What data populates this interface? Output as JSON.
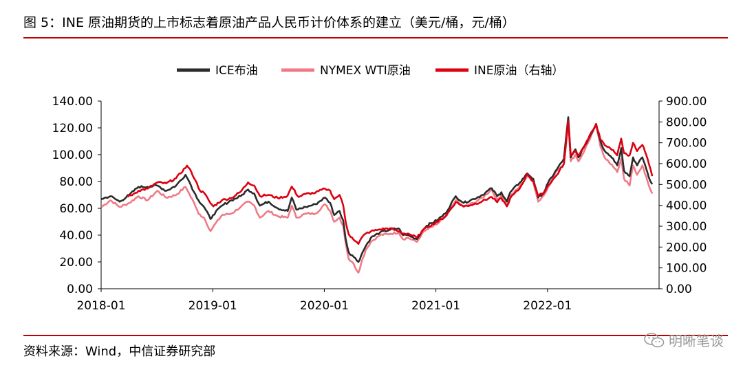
{
  "figure_title": "图 5：INE 原油期货的上市标志着原油产品人民币计价体系的建立（美元/桶，元/桶）",
  "source": "资料来源：Wind，中信证券研究部",
  "watermark": "明晰笔谈",
  "colors": {
    "ice": "#2b2b2b",
    "wti": "#f07a85",
    "ine": "#dd0010",
    "rule": "#c00000"
  },
  "chart_data": {
    "type": "line",
    "legend_position": "top",
    "x_ticks": [
      "2018-01",
      "2019-01",
      "2020-01",
      "2021-01",
      "2022-01"
    ],
    "x_range": [
      "2018-01",
      "2022-12"
    ],
    "y_left": {
      "range": [
        0,
        140
      ],
      "ticks": [
        "0.00",
        "20.00",
        "40.00",
        "60.00",
        "80.00",
        "100.00",
        "120.00",
        "140.00"
      ]
    },
    "y_right": {
      "range": [
        0,
        900
      ],
      "ticks": [
        "0.00",
        "100.00",
        "200.00",
        "300.00",
        "400.00",
        "500.00",
        "600.00",
        "700.00",
        "800.00",
        "900.00"
      ]
    },
    "series": [
      {
        "name": "ICE布油",
        "axis": "left",
        "color": "#2b2b2b",
        "points": [
          [
            "2018-01-02",
            67
          ],
          [
            "2018-02-01",
            69
          ],
          [
            "2018-03-01",
            65
          ],
          [
            "2018-04-02",
            70
          ],
          [
            "2018-05-01",
            76
          ],
          [
            "2018-06-01",
            76
          ],
          [
            "2018-07-02",
            77
          ],
          [
            "2018-08-01",
            73
          ],
          [
            "2018-09-03",
            77
          ],
          [
            "2018-10-03",
            85
          ],
          [
            "2018-10-15",
            80
          ],
          [
            "2018-11-01",
            72
          ],
          [
            "2018-11-15",
            66
          ],
          [
            "2018-12-03",
            61
          ],
          [
            "2018-12-24",
            52
          ],
          [
            "2019-01-02",
            55
          ],
          [
            "2019-02-01",
            62
          ],
          [
            "2019-03-01",
            66
          ],
          [
            "2019-04-01",
            69
          ],
          [
            "2019-04-25",
            74
          ],
          [
            "2019-05-15",
            71
          ],
          [
            "2019-06-03",
            62
          ],
          [
            "2019-07-01",
            65
          ],
          [
            "2019-08-01",
            60
          ],
          [
            "2019-09-03",
            58
          ],
          [
            "2019-09-16",
            68
          ],
          [
            "2019-10-01",
            59
          ],
          [
            "2019-11-01",
            61
          ],
          [
            "2019-12-02",
            63
          ],
          [
            "2020-01-03",
            68
          ],
          [
            "2020-01-20",
            64
          ],
          [
            "2020-02-03",
            55
          ],
          [
            "2020-02-20",
            58
          ],
          [
            "2020-03-02",
            51
          ],
          [
            "2020-03-10",
            37
          ],
          [
            "2020-03-20",
            27
          ],
          [
            "2020-04-01",
            25
          ],
          [
            "2020-04-21",
            20
          ],
          [
            "2020-05-04",
            27
          ],
          [
            "2020-05-15",
            32
          ],
          [
            "2020-06-01",
            38
          ],
          [
            "2020-07-01",
            42
          ],
          [
            "2020-08-03",
            44
          ],
          [
            "2020-09-01",
            45
          ],
          [
            "2020-09-15",
            40
          ],
          [
            "2020-10-01",
            40
          ],
          [
            "2020-10-30",
            37
          ],
          [
            "2020-11-16",
            43
          ],
          [
            "2020-12-01",
            47
          ],
          [
            "2021-01-04",
            51
          ],
          [
            "2021-02-01",
            56
          ],
          [
            "2021-03-05",
            69
          ],
          [
            "2021-04-01",
            64
          ],
          [
            "2021-05-03",
            67
          ],
          [
            "2021-06-01",
            70
          ],
          [
            "2021-07-01",
            75
          ],
          [
            "2021-07-19",
            69
          ],
          [
            "2021-08-02",
            72
          ],
          [
            "2021-08-20",
            65
          ],
          [
            "2021-09-01",
            72
          ],
          [
            "2021-10-01",
            79
          ],
          [
            "2021-10-26",
            86
          ],
          [
            "2021-11-15",
            82
          ],
          [
            "2021-12-01",
            68
          ],
          [
            "2021-12-20",
            72
          ],
          [
            "2022-01-03",
            79
          ],
          [
            "2022-02-01",
            89
          ],
          [
            "2022-02-24",
            97
          ],
          [
            "2022-03-08",
            128
          ],
          [
            "2022-03-16",
            98
          ],
          [
            "2022-04-01",
            104
          ],
          [
            "2022-04-11",
            98
          ],
          [
            "2022-05-02",
            107
          ],
          [
            "2022-06-08",
            123
          ],
          [
            "2022-06-22",
            110
          ],
          [
            "2022-07-05",
            103
          ],
          [
            "2022-07-15",
            101
          ],
          [
            "2022-08-03",
            97
          ],
          [
            "2022-08-16",
            92
          ],
          [
            "2022-08-29",
            105
          ],
          [
            "2022-09-08",
            88
          ],
          [
            "2022-09-26",
            84
          ],
          [
            "2022-10-07",
            98
          ],
          [
            "2022-10-20",
            92
          ],
          [
            "2022-11-07",
            98
          ],
          [
            "2022-11-15",
            93
          ],
          [
            "2022-11-28",
            83
          ],
          [
            "2022-12-09",
            78
          ]
        ]
      },
      {
        "name": "NYMEX WTI原油",
        "axis": "left",
        "color": "#f07a85",
        "points": [
          [
            "2018-01-02",
            61
          ],
          [
            "2018-02-01",
            66
          ],
          [
            "2018-03-01",
            61
          ],
          [
            "2018-04-02",
            64
          ],
          [
            "2018-05-01",
            69
          ],
          [
            "2018-06-01",
            66
          ],
          [
            "2018-07-02",
            73
          ],
          [
            "2018-08-01",
            68
          ],
          [
            "2018-09-03",
            70
          ],
          [
            "2018-10-03",
            76
          ],
          [
            "2018-10-15",
            71
          ],
          [
            "2018-11-01",
            64
          ],
          [
            "2018-11-15",
            56
          ],
          [
            "2018-12-03",
            53
          ],
          [
            "2018-12-24",
            43
          ],
          [
            "2019-01-02",
            46
          ],
          [
            "2019-02-01",
            55
          ],
          [
            "2019-03-01",
            56
          ],
          [
            "2019-04-01",
            61
          ],
          [
            "2019-04-25",
            65
          ],
          [
            "2019-05-15",
            62
          ],
          [
            "2019-06-03",
            53
          ],
          [
            "2019-07-01",
            58
          ],
          [
            "2019-08-01",
            54
          ],
          [
            "2019-09-03",
            53
          ],
          [
            "2019-09-16",
            62
          ],
          [
            "2019-10-01",
            53
          ],
          [
            "2019-11-01",
            56
          ],
          [
            "2019-12-02",
            56
          ],
          [
            "2020-01-03",
            63
          ],
          [
            "2020-01-20",
            58
          ],
          [
            "2020-02-03",
            50
          ],
          [
            "2020-02-20",
            53
          ],
          [
            "2020-03-02",
            47
          ],
          [
            "2020-03-10",
            34
          ],
          [
            "2020-03-20",
            22
          ],
          [
            "2020-04-01",
            20
          ],
          [
            "2020-04-21",
            12
          ],
          [
            "2020-05-04",
            22
          ],
          [
            "2020-05-15",
            29
          ],
          [
            "2020-06-01",
            35
          ],
          [
            "2020-07-01",
            40
          ],
          [
            "2020-08-03",
            41
          ],
          [
            "2020-09-01",
            42
          ],
          [
            "2020-09-15",
            37
          ],
          [
            "2020-10-01",
            38
          ],
          [
            "2020-10-30",
            35
          ],
          [
            "2020-11-16",
            41
          ],
          [
            "2020-12-01",
            44
          ],
          [
            "2021-01-04",
            48
          ],
          [
            "2021-02-01",
            54
          ],
          [
            "2021-03-05",
            66
          ],
          [
            "2021-04-01",
            61
          ],
          [
            "2021-05-03",
            64
          ],
          [
            "2021-06-01",
            68
          ],
          [
            "2021-07-01",
            74
          ],
          [
            "2021-07-19",
            66
          ],
          [
            "2021-08-02",
            70
          ],
          [
            "2021-08-20",
            62
          ],
          [
            "2021-09-01",
            69
          ],
          [
            "2021-10-01",
            76
          ],
          [
            "2021-10-26",
            84
          ],
          [
            "2021-11-15",
            80
          ],
          [
            "2021-12-01",
            65
          ],
          [
            "2021-12-20",
            70
          ],
          [
            "2022-01-03",
            76
          ],
          [
            "2022-02-01",
            88
          ],
          [
            "2022-02-24",
            93
          ],
          [
            "2022-03-08",
            124
          ],
          [
            "2022-03-16",
            95
          ],
          [
            "2022-04-01",
            100
          ],
          [
            "2022-04-11",
            95
          ],
          [
            "2022-05-02",
            104
          ],
          [
            "2022-06-08",
            122
          ],
          [
            "2022-06-22",
            106
          ],
          [
            "2022-07-05",
            98
          ],
          [
            "2022-07-15",
            96
          ],
          [
            "2022-08-03",
            91
          ],
          [
            "2022-08-16",
            87
          ],
          [
            "2022-08-29",
            97
          ],
          [
            "2022-09-08",
            82
          ],
          [
            "2022-09-26",
            77
          ],
          [
            "2022-10-07",
            92
          ],
          [
            "2022-10-20",
            85
          ],
          [
            "2022-11-07",
            92
          ],
          [
            "2022-11-15",
            86
          ],
          [
            "2022-11-28",
            77
          ],
          [
            "2022-12-09",
            71
          ]
        ]
      },
      {
        "name": "INE原油（右轴）",
        "axis": "right",
        "color": "#dd0010",
        "points": [
          [
            "2018-03-26",
            440
          ],
          [
            "2018-04-16",
            455
          ],
          [
            "2018-05-02",
            470
          ],
          [
            "2018-06-01",
            480
          ],
          [
            "2018-07-02",
            510
          ],
          [
            "2018-08-01",
            505
          ],
          [
            "2018-09-03",
            530
          ],
          [
            "2018-10-08",
            590
          ],
          [
            "2018-10-22",
            560
          ],
          [
            "2018-11-05",
            520
          ],
          [
            "2018-11-20",
            470
          ],
          [
            "2018-12-03",
            460
          ],
          [
            "2018-12-24",
            410
          ],
          [
            "2019-01-03",
            395
          ],
          [
            "2019-02-01",
            425
          ],
          [
            "2019-03-01",
            435
          ],
          [
            "2019-04-01",
            465
          ],
          [
            "2019-04-25",
            510
          ],
          [
            "2019-05-15",
            495
          ],
          [
            "2019-06-03",
            445
          ],
          [
            "2019-07-01",
            450
          ],
          [
            "2019-08-01",
            435
          ],
          [
            "2019-09-02",
            445
          ],
          [
            "2019-09-16",
            490
          ],
          [
            "2019-10-08",
            440
          ],
          [
            "2019-11-01",
            455
          ],
          [
            "2019-12-02",
            460
          ],
          [
            "2020-01-03",
            480
          ],
          [
            "2020-01-20",
            470
          ],
          [
            "2020-02-03",
            430
          ],
          [
            "2020-02-20",
            450
          ],
          [
            "2020-03-02",
            400
          ],
          [
            "2020-03-10",
            320
          ],
          [
            "2020-03-20",
            260
          ],
          [
            "2020-04-01",
            245
          ],
          [
            "2020-04-21",
            215
          ],
          [
            "2020-05-04",
            250
          ],
          [
            "2020-05-15",
            265
          ],
          [
            "2020-06-01",
            275
          ],
          [
            "2020-07-01",
            285
          ],
          [
            "2020-08-03",
            290
          ],
          [
            "2020-09-01",
            275
          ],
          [
            "2020-09-15",
            265
          ],
          [
            "2020-10-01",
            265
          ],
          [
            "2020-10-30",
            245
          ],
          [
            "2020-11-16",
            275
          ],
          [
            "2020-12-01",
            295
          ],
          [
            "2021-01-04",
            320
          ],
          [
            "2021-02-01",
            345
          ],
          [
            "2021-03-05",
            415
          ],
          [
            "2021-04-01",
            395
          ],
          [
            "2021-05-03",
            405
          ],
          [
            "2021-06-01",
            420
          ],
          [
            "2021-07-01",
            440
          ],
          [
            "2021-07-19",
            415
          ],
          [
            "2021-08-02",
            435
          ],
          [
            "2021-08-20",
            395
          ],
          [
            "2021-09-01",
            435
          ],
          [
            "2021-10-01",
            480
          ],
          [
            "2021-10-26",
            550
          ],
          [
            "2021-11-15",
            515
          ],
          [
            "2021-12-01",
            445
          ],
          [
            "2021-12-20",
            460
          ],
          [
            "2022-01-03",
            495
          ],
          [
            "2022-02-01",
            545
          ],
          [
            "2022-02-24",
            600
          ],
          [
            "2022-03-08",
            805
          ],
          [
            "2022-03-16",
            640
          ],
          [
            "2022-04-01",
            660
          ],
          [
            "2022-04-11",
            640
          ],
          [
            "2022-05-02",
            690
          ],
          [
            "2022-06-08",
            790
          ],
          [
            "2022-06-22",
            715
          ],
          [
            "2022-07-05",
            690
          ],
          [
            "2022-07-15",
            680
          ],
          [
            "2022-08-03",
            665
          ],
          [
            "2022-08-16",
            640
          ],
          [
            "2022-08-29",
            720
          ],
          [
            "2022-09-08",
            650
          ],
          [
            "2022-09-26",
            640
          ],
          [
            "2022-10-07",
            700
          ],
          [
            "2022-10-20",
            660
          ],
          [
            "2022-11-07",
            690
          ],
          [
            "2022-11-15",
            660
          ],
          [
            "2022-11-28",
            600
          ],
          [
            "2022-12-09",
            540
          ]
        ]
      }
    ]
  }
}
